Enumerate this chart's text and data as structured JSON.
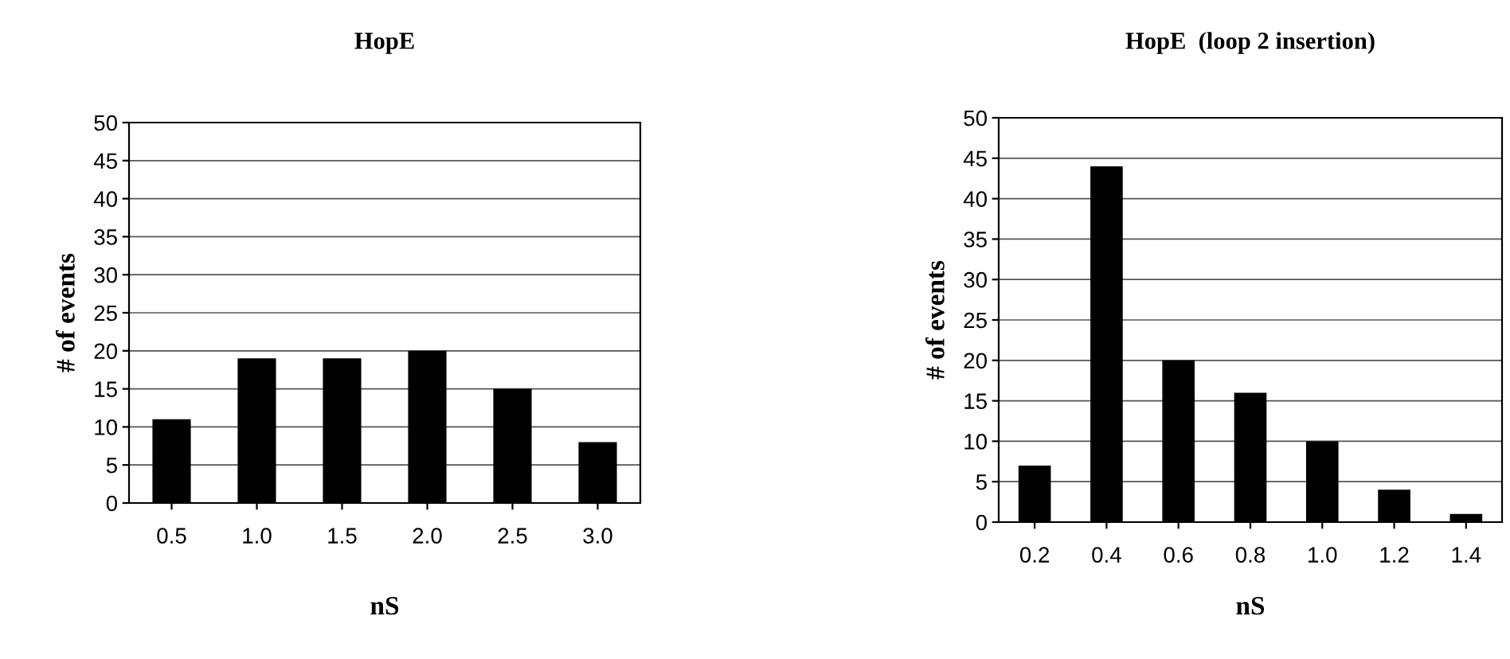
{
  "chart_data": [
    {
      "type": "bar",
      "title": "HopE",
      "xlabel": "nS",
      "ylabel": "# of events",
      "categories": [
        "0.5",
        "1.0",
        "1.5",
        "2.0",
        "2.5",
        "3.0"
      ],
      "values": [
        11,
        19,
        19,
        20,
        15,
        8
      ],
      "color": "#000000",
      "ylim": [
        0,
        50
      ],
      "yticks": [
        0,
        5,
        10,
        15,
        20,
        25,
        30,
        35,
        40,
        45,
        50
      ],
      "grid": "y"
    },
    {
      "type": "bar",
      "title": "HopE  (loop 2 insertion)",
      "xlabel": "nS",
      "ylabel": "# of events",
      "categories": [
        "0.2",
        "0.4",
        "0.6",
        "0.8",
        "1.0",
        "1.2",
        "1.4"
      ],
      "values": [
        7,
        44,
        20,
        16,
        10,
        4,
        1
      ],
      "color": "#000000",
      "ylim": [
        0,
        50
      ],
      "yticks": [
        0,
        5,
        10,
        15,
        20,
        25,
        30,
        35,
        40,
        45,
        50
      ],
      "grid": "y"
    }
  ]
}
